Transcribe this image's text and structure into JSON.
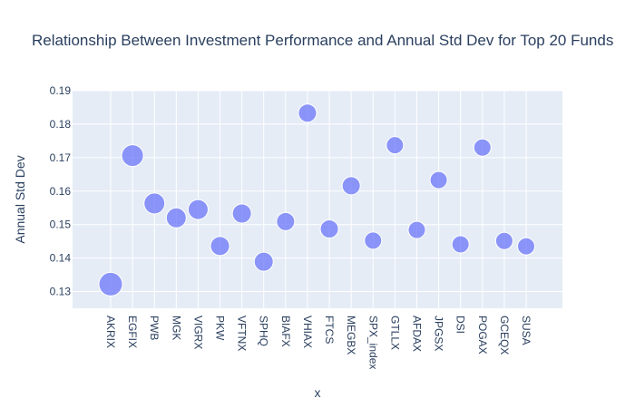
{
  "chart_data": {
    "type": "scatter",
    "title": "Relationship Between Investment Performance and Annual Std Dev for Top 20 Funds",
    "xlabel": "x",
    "ylabel": "Annual Std Dev",
    "categories": [
      "AKRIX",
      "EGFIX",
      "PWB",
      "MGK",
      "VIGRX",
      "PKW",
      "VFTNX",
      "SPHQ",
      "BIAFX",
      "VHIAX",
      "FTCS",
      "MEGBX",
      "SPX_index",
      "GTLLX",
      "AFDAX",
      "JPGSX",
      "DSI",
      "POGAX",
      "GCEQX",
      "SUSA"
    ],
    "values": [
      0.1322,
      0.1706,
      0.1563,
      0.152,
      0.1545,
      0.1436,
      0.1533,
      0.1389,
      0.1509,
      0.1833,
      0.1487,
      0.1616,
      0.1452,
      0.1737,
      0.1484,
      0.1633,
      0.1441,
      0.173,
      0.1451,
      0.1435
    ],
    "marker_sizes": [
      13,
      12,
      11.5,
      11,
      11,
      10.5,
      10.5,
      10.5,
      10,
      10,
      10,
      10,
      9.5,
      9.5,
      9.5,
      9.5,
      9.5,
      9.5,
      9.5,
      9.5
    ],
    "ylim": [
      0.125,
      0.19
    ],
    "yticks": [
      0.13,
      0.14,
      0.15,
      0.16,
      0.17,
      0.18,
      0.19
    ],
    "ytick_labels": [
      "0.13",
      "0.14",
      "0.15",
      "0.16",
      "0.17",
      "0.18",
      "0.19"
    ],
    "grid": true,
    "legend": "none",
    "colors": {
      "marker": "#636efa",
      "plot_bg": "#e5ecf6",
      "grid": "#ffffff",
      "text": "#2a3f5f"
    }
  }
}
